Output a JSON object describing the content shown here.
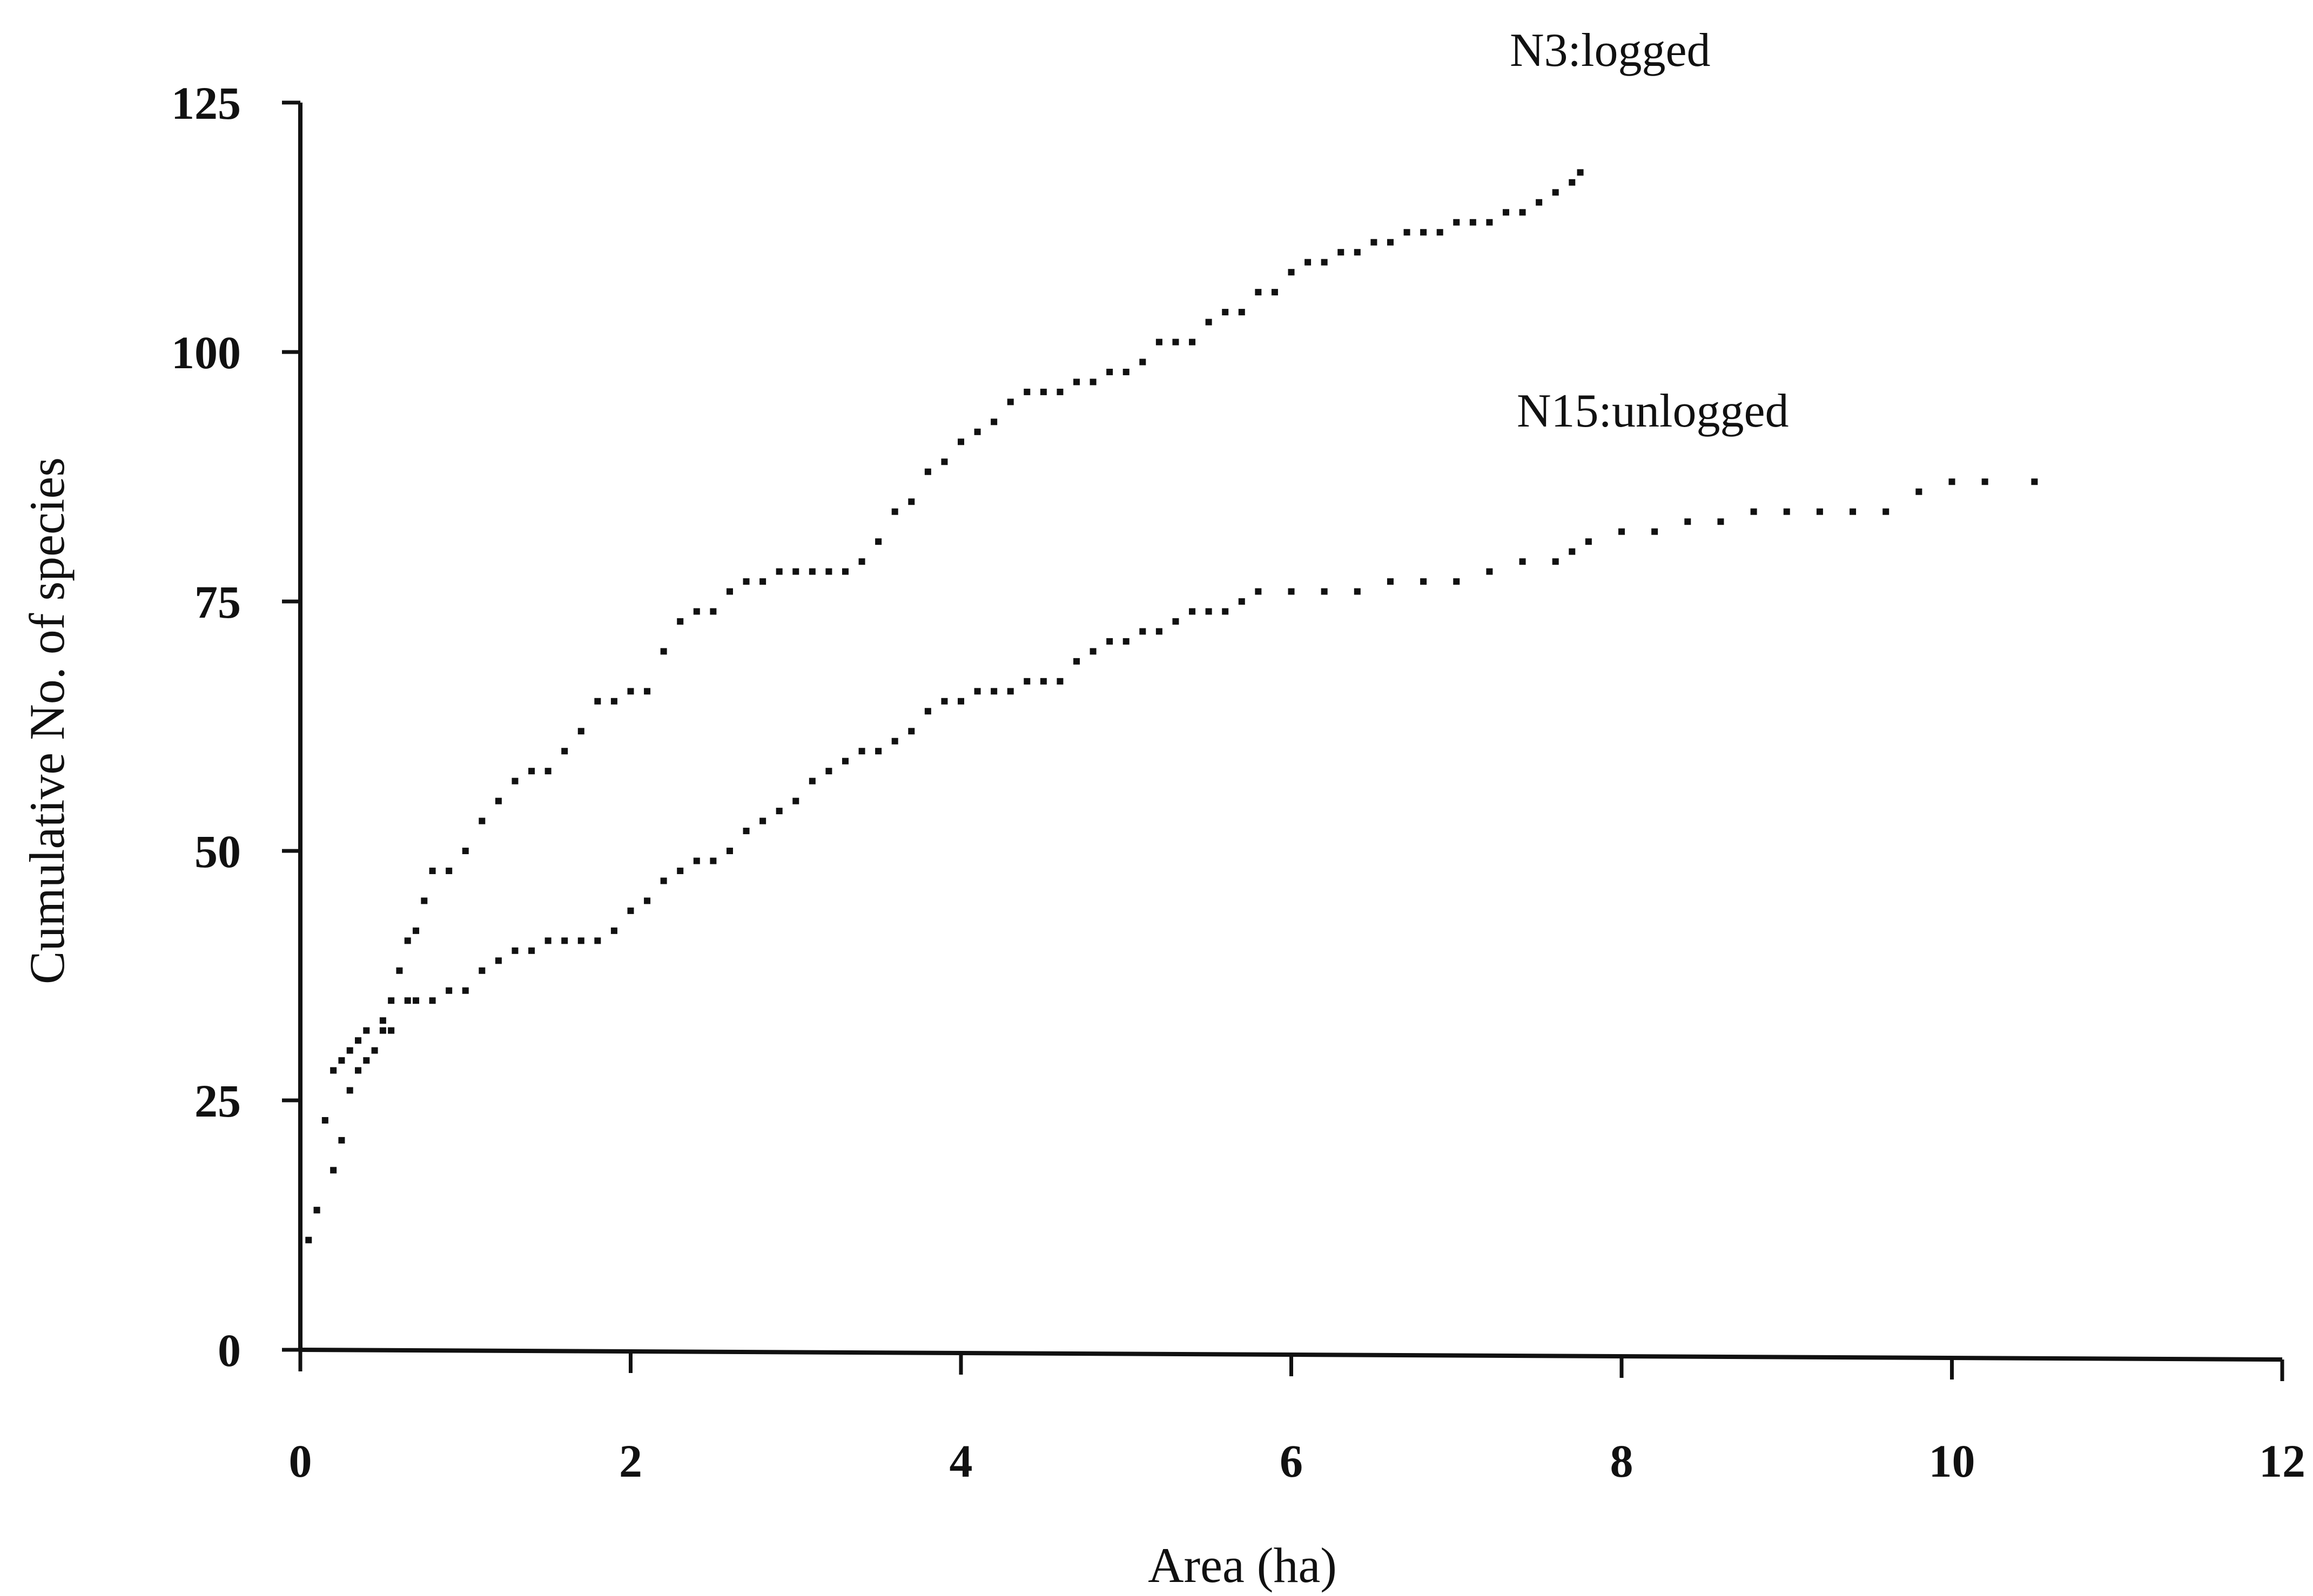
{
  "chart_data": {
    "type": "scatter",
    "title": "",
    "xlabel": "Area  (ha)",
    "ylabel": "Cumulative No. of species",
    "xlim": [
      0,
      12
    ],
    "ylim": [
      0,
      125
    ],
    "xticks": [
      "0",
      "2",
      "4",
      "6",
      "8",
      "10",
      "12"
    ],
    "yticks": [
      "0",
      "25",
      "50",
      "75",
      "100",
      "125"
    ],
    "grid": false,
    "legend": "none",
    "series_color": "#111111",
    "series": [
      {
        "name": "N3:logged",
        "points": [
          [
            0.05,
            11
          ],
          [
            0.1,
            14
          ],
          [
            0.15,
            23
          ],
          [
            0.2,
            28
          ],
          [
            0.25,
            29
          ],
          [
            0.3,
            30
          ],
          [
            0.35,
            31
          ],
          [
            0.4,
            32
          ],
          [
            0.5,
            33
          ],
          [
            0.55,
            35
          ],
          [
            0.6,
            38
          ],
          [
            0.65,
            41
          ],
          [
            0.7,
            42
          ],
          [
            0.75,
            45
          ],
          [
            0.8,
            48
          ],
          [
            0.9,
            48
          ],
          [
            1.0,
            50
          ],
          [
            1.1,
            53
          ],
          [
            1.2,
            55
          ],
          [
            1.3,
            57
          ],
          [
            1.4,
            58
          ],
          [
            1.5,
            58
          ],
          [
            1.6,
            60
          ],
          [
            1.7,
            62
          ],
          [
            1.8,
            65
          ],
          [
            1.9,
            65
          ],
          [
            2.0,
            66
          ],
          [
            2.1,
            66
          ],
          [
            2.2,
            70
          ],
          [
            2.3,
            73
          ],
          [
            2.4,
            74
          ],
          [
            2.5,
            74
          ],
          [
            2.6,
            76
          ],
          [
            2.7,
            77
          ],
          [
            2.8,
            77
          ],
          [
            2.9,
            78
          ],
          [
            3.0,
            78
          ],
          [
            3.1,
            78
          ],
          [
            3.2,
            78
          ],
          [
            3.3,
            78
          ],
          [
            3.4,
            79
          ],
          [
            3.5,
            81
          ],
          [
            3.6,
            84
          ],
          [
            3.7,
            85
          ],
          [
            3.8,
            88
          ],
          [
            3.9,
            89
          ],
          [
            4.0,
            91
          ],
          [
            4.1,
            92
          ],
          [
            4.2,
            93
          ],
          [
            4.3,
            95
          ],
          [
            4.4,
            96
          ],
          [
            4.5,
            96
          ],
          [
            4.6,
            96
          ],
          [
            4.7,
            97
          ],
          [
            4.8,
            97
          ],
          [
            4.9,
            98
          ],
          [
            5.0,
            98
          ],
          [
            5.1,
            99
          ],
          [
            5.2,
            101
          ],
          [
            5.3,
            101
          ],
          [
            5.4,
            101
          ],
          [
            5.5,
            103
          ],
          [
            5.6,
            104
          ],
          [
            5.7,
            104
          ],
          [
            5.8,
            106
          ],
          [
            5.9,
            106
          ],
          [
            6.0,
            108
          ],
          [
            6.1,
            109
          ],
          [
            6.2,
            109
          ],
          [
            6.3,
            110
          ],
          [
            6.4,
            110
          ],
          [
            6.5,
            111
          ],
          [
            6.6,
            111
          ],
          [
            6.7,
            112
          ],
          [
            6.8,
            112
          ],
          [
            6.9,
            112
          ],
          [
            7.0,
            113
          ],
          [
            7.1,
            113
          ],
          [
            7.2,
            113
          ],
          [
            7.3,
            114
          ],
          [
            7.4,
            114
          ],
          [
            7.5,
            115
          ],
          [
            7.6,
            116
          ],
          [
            7.7,
            117
          ],
          [
            7.75,
            118
          ]
        ]
      },
      {
        "name": "N15:unlogged",
        "points": [
          [
            0.1,
            14
          ],
          [
            0.2,
            18
          ],
          [
            0.25,
            21
          ],
          [
            0.3,
            26
          ],
          [
            0.35,
            28
          ],
          [
            0.4,
            29
          ],
          [
            0.45,
            30
          ],
          [
            0.5,
            32
          ],
          [
            0.55,
            32
          ],
          [
            0.65,
            35
          ],
          [
            0.7,
            35
          ],
          [
            0.8,
            35
          ],
          [
            0.9,
            36
          ],
          [
            1.0,
            36
          ],
          [
            1.1,
            38
          ],
          [
            1.2,
            39
          ],
          [
            1.3,
            40
          ],
          [
            1.4,
            40
          ],
          [
            1.5,
            41
          ],
          [
            1.6,
            41
          ],
          [
            1.7,
            41
          ],
          [
            1.8,
            41
          ],
          [
            1.9,
            42
          ],
          [
            2.0,
            44
          ],
          [
            2.1,
            45
          ],
          [
            2.2,
            47
          ],
          [
            2.3,
            48
          ],
          [
            2.4,
            49
          ],
          [
            2.5,
            49
          ],
          [
            2.6,
            50
          ],
          [
            2.7,
            52
          ],
          [
            2.8,
            53
          ],
          [
            2.9,
            54
          ],
          [
            3.0,
            55
          ],
          [
            3.1,
            57
          ],
          [
            3.2,
            58
          ],
          [
            3.3,
            59
          ],
          [
            3.4,
            60
          ],
          [
            3.5,
            60
          ],
          [
            3.6,
            61
          ],
          [
            3.7,
            62
          ],
          [
            3.8,
            64
          ],
          [
            3.9,
            65
          ],
          [
            4.0,
            65
          ],
          [
            4.1,
            66
          ],
          [
            4.2,
            66
          ],
          [
            4.3,
            66
          ],
          [
            4.4,
            67
          ],
          [
            4.5,
            67
          ],
          [
            4.6,
            67
          ],
          [
            4.7,
            69
          ],
          [
            4.8,
            70
          ],
          [
            4.9,
            71
          ],
          [
            5.0,
            71
          ],
          [
            5.1,
            72
          ],
          [
            5.2,
            72
          ],
          [
            5.3,
            73
          ],
          [
            5.4,
            74
          ],
          [
            5.5,
            74
          ],
          [
            5.6,
            74
          ],
          [
            5.7,
            75
          ],
          [
            5.8,
            76
          ],
          [
            6.0,
            76
          ],
          [
            6.2,
            76
          ],
          [
            6.4,
            76
          ],
          [
            6.6,
            77
          ],
          [
            6.8,
            77
          ],
          [
            7.0,
            77
          ],
          [
            7.2,
            78
          ],
          [
            7.4,
            79
          ],
          [
            7.6,
            79
          ],
          [
            7.7,
            80
          ],
          [
            7.8,
            81
          ],
          [
            8.0,
            82
          ],
          [
            8.2,
            82
          ],
          [
            8.4,
            83
          ],
          [
            8.6,
            83
          ],
          [
            8.8,
            84
          ],
          [
            9.0,
            84
          ],
          [
            9.2,
            84
          ],
          [
            9.4,
            84
          ],
          [
            9.6,
            84
          ],
          [
            9.8,
            86
          ],
          [
            10.0,
            87
          ],
          [
            10.2,
            87
          ],
          [
            10.5,
            87
          ]
        ]
      }
    ]
  }
}
